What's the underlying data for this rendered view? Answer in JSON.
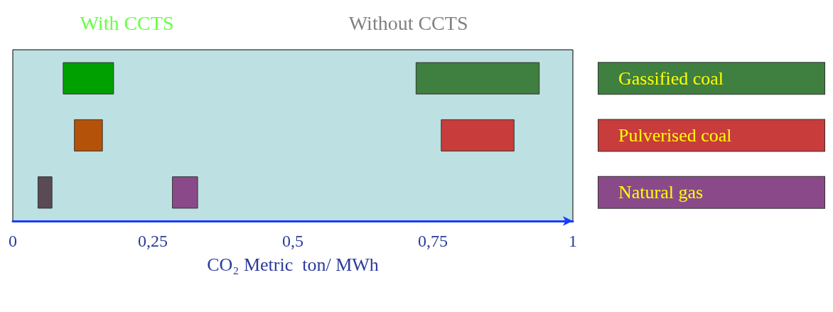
{
  "chart_data": {
    "type": "bar",
    "orientation": "horizontal",
    "xlabel": "CO₂ Metric  ton/ MWh",
    "categories": [
      "Gassified coal",
      "Pulverised coal",
      "Natural gas"
    ],
    "series": [
      {
        "name": "With CCTS",
        "colors": [
          "#00a000",
          "#b5520a",
          "#5a4a55"
        ],
        "values": [
          0.09,
          0.05,
          0.025
        ],
        "base": [
          0.09,
          0.11,
          0.045
        ]
      },
      {
        "name": "Without CCTS",
        "colors": [
          "#3f7f3f",
          "#c83c3c",
          "#8a4a8a"
        ],
        "values": [
          0.22,
          0.13,
          0.045
        ],
        "base": [
          0.72,
          0.765,
          0.285
        ]
      }
    ],
    "xlim": [
      0,
      1
    ],
    "xticks": [
      {
        "value": 0,
        "label": "0"
      },
      {
        "value": 0.25,
        "label": "0,25"
      },
      {
        "value": 0.5,
        "label": "0,5"
      },
      {
        "value": 0.75,
        "label": "0,75"
      },
      {
        "value": 1,
        "label": "1"
      }
    ],
    "grid": false
  }
}
